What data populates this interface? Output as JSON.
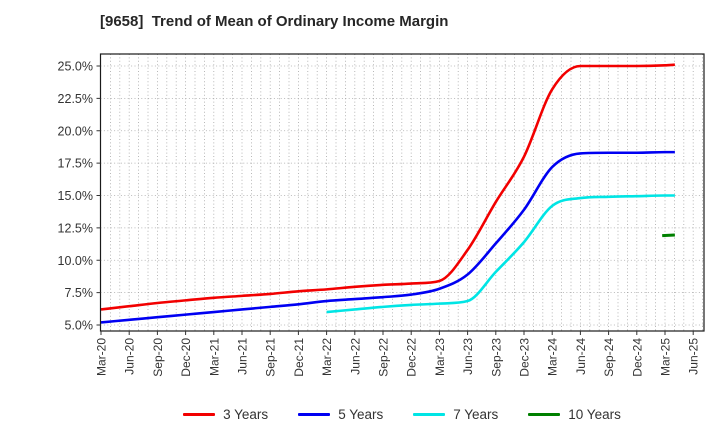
{
  "chart_data": {
    "type": "line",
    "title": "[9658]  Trend of Mean of Ordinary Income Margin",
    "xlabel": "",
    "ylabel": "",
    "ylim": [
      4.55,
      25.95
    ],
    "yticks": [
      5.0,
      7.5,
      10.0,
      12.5,
      15.0,
      17.5,
      20.0,
      22.5,
      25.0
    ],
    "ytick_labels": [
      "5.0%",
      "7.5%",
      "10.0%",
      "12.5%",
      "15.0%",
      "17.5%",
      "20.0%",
      "22.5%",
      "25.0%"
    ],
    "x_tick_labels": [
      "Mar-20",
      "Jun-20",
      "Sep-20",
      "Dec-20",
      "Mar-21",
      "Jun-21",
      "Sep-21",
      "Dec-21",
      "Mar-22",
      "Jun-22",
      "Sep-22",
      "Dec-22",
      "Mar-23",
      "Jun-23",
      "Sep-23",
      "Dec-23",
      "Mar-24",
      "Jun-24",
      "Sep-24",
      "Dec-24",
      "Mar-25",
      "Jun-25"
    ],
    "grid": {
      "horizontal": "at_yticks",
      "vertical": "monthly",
      "line_style": "dotted",
      "color": "#a6a6a6"
    },
    "legend": {
      "position": "bottom-center",
      "entries": [
        "3 Years",
        "5 Years",
        "7 Years",
        "10 Years"
      ]
    },
    "series": [
      {
        "name": "3 Years",
        "color": "#f20000",
        "points": [
          [
            0,
            6.2
          ],
          [
            1,
            6.45
          ],
          [
            2,
            6.7
          ],
          [
            3,
            6.9
          ],
          [
            4,
            7.1
          ],
          [
            5,
            7.25
          ],
          [
            6,
            7.4
          ],
          [
            7,
            7.6
          ],
          [
            8,
            7.75
          ],
          [
            9,
            7.95
          ],
          [
            10,
            8.1
          ],
          [
            11,
            8.2
          ],
          [
            12,
            8.4
          ],
          [
            13,
            10.8
          ],
          [
            14,
            14.5
          ],
          [
            15,
            18.0
          ],
          [
            16,
            23.2
          ],
          [
            17,
            25.0
          ],
          [
            18,
            25.0
          ],
          [
            19,
            25.0
          ],
          [
            20,
            25.05
          ],
          [
            20.35,
            25.1
          ]
        ]
      },
      {
        "name": "5 Years",
        "color": "#0000f2",
        "points": [
          [
            0,
            5.2
          ],
          [
            1,
            5.4
          ],
          [
            2,
            5.6
          ],
          [
            3,
            5.8
          ],
          [
            4,
            6.0
          ],
          [
            5,
            6.2
          ],
          [
            6,
            6.4
          ],
          [
            7,
            6.6
          ],
          [
            8,
            6.85
          ],
          [
            9,
            7.0
          ],
          [
            10,
            7.15
          ],
          [
            11,
            7.35
          ],
          [
            12,
            7.8
          ],
          [
            13,
            8.9
          ],
          [
            14,
            11.3
          ],
          [
            15,
            13.9
          ],
          [
            16,
            17.2
          ],
          [
            17,
            18.25
          ],
          [
            18,
            18.3
          ],
          [
            19,
            18.3
          ],
          [
            20,
            18.35
          ],
          [
            20.35,
            18.35
          ]
        ]
      },
      {
        "name": "7 Years",
        "color": "#00e5e5",
        "points": [
          [
            8,
            6.0
          ],
          [
            9,
            6.2
          ],
          [
            10,
            6.4
          ],
          [
            11,
            6.55
          ],
          [
            12,
            6.65
          ],
          [
            13,
            6.85
          ],
          [
            14,
            9.1
          ],
          [
            15,
            11.4
          ],
          [
            16,
            14.2
          ],
          [
            17,
            14.8
          ],
          [
            18,
            14.9
          ],
          [
            19,
            14.95
          ],
          [
            20,
            15.0
          ],
          [
            20.35,
            15.0
          ]
        ]
      },
      {
        "name": "10 Years",
        "color": "#008000",
        "points": [
          [
            19.9,
            11.9
          ],
          [
            20.35,
            11.95
          ]
        ]
      }
    ]
  }
}
